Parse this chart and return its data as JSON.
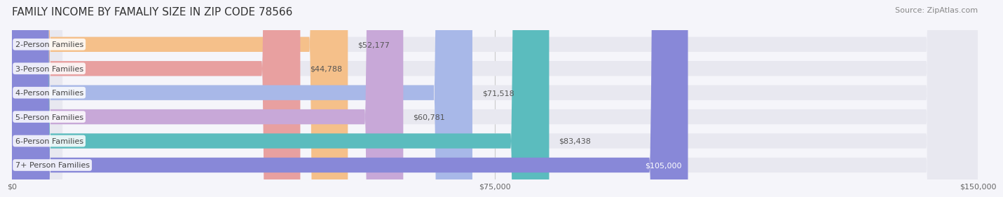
{
  "title": "FAMILY INCOME BY FAMALIY SIZE IN ZIP CODE 78566",
  "source": "Source: ZipAtlas.com",
  "categories": [
    "2-Person Families",
    "3-Person Families",
    "4-Person Families",
    "5-Person Families",
    "6-Person Families",
    "7+ Person Families"
  ],
  "values": [
    52177,
    44788,
    71518,
    60781,
    83438,
    105000
  ],
  "bar_colors": [
    "#f5c08a",
    "#e8a0a0",
    "#a8b8e8",
    "#c8a8d8",
    "#5bbcbe",
    "#8888d8"
  ],
  "bar_bg_color": "#e8e8f0",
  "value_labels": [
    "$52,177",
    "$44,788",
    "$71,518",
    "$60,781",
    "$83,438",
    "$105,000"
  ],
  "xlim": [
    0,
    150000
  ],
  "xticks": [
    0,
    75000,
    150000
  ],
  "xtick_labels": [
    "$0",
    "$75,000",
    "$150,000"
  ],
  "background_color": "#f5f5fa",
  "title_fontsize": 11,
  "label_fontsize": 8,
  "value_fontsize": 8,
  "source_fontsize": 8
}
